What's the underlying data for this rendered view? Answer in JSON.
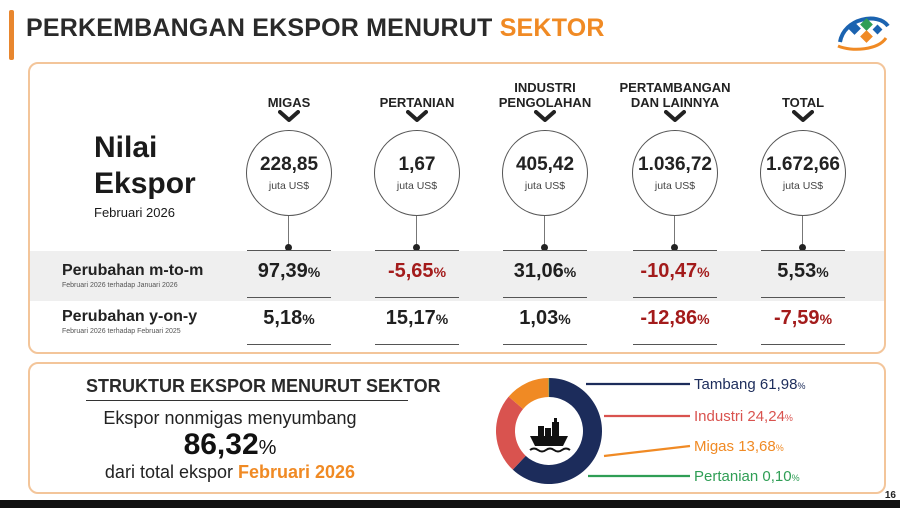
{
  "header": {
    "title_main": "PERKEMBANGAN EKSPOR MENURUT ",
    "title_highlight": "SEKTOR"
  },
  "colors": {
    "accent": "#f08a24",
    "negative": "#a31b1b",
    "navy": "#1c2c5b",
    "red": "#d9534f",
    "green": "#2f9e55"
  },
  "logo_icon": "bps-logo",
  "nilai": {
    "line1": "Nilai",
    "line2": "Ekspor",
    "period": "Februari 2026"
  },
  "rows": {
    "mtm_label": "Perubahan m-to-m",
    "mtm_note": "Februari 2026 terhadap Januari 2026",
    "yoy_label": "Perubahan y-on-y",
    "yoy_note": "Februari 2026 terhadap Februari 2025"
  },
  "sectors": [
    {
      "name": "MIGAS",
      "value": "228,85",
      "unit": "juta US$",
      "mtm": "97,39",
      "yoy": "5,18"
    },
    {
      "name": "PERTANIAN",
      "value": "1,67",
      "unit": "juta US$",
      "mtm": "-5,65",
      "yoy": "15,17"
    },
    {
      "name": "INDUSTRI\nPENGOLAHAN",
      "value": "405,42",
      "unit": "juta US$",
      "mtm": "31,06",
      "yoy": "1,03"
    },
    {
      "name": "PERTAMBANGAN\nDAN LAINNYA",
      "value": "1.036,72",
      "unit": "juta US$",
      "mtm": "-10,47",
      "yoy": "-12,86"
    },
    {
      "name": "TOTAL",
      "value": "1.672,66",
      "unit": "juta US$",
      "mtm": "5,53",
      "yoy": "-7,59"
    }
  ],
  "pct_sign": "%",
  "structure": {
    "title": "STRUKTUR EKSPOR MENURUT SEKTOR",
    "line1": "Ekspor nonmigas menyumbang",
    "big_value": "86,32",
    "big_unit": "%",
    "line3_prefix": "dari total ekspor ",
    "line3_highlight": "Februari 2026",
    "center_icon": "cargo-ship-icon"
  },
  "donut": [
    {
      "name": "Tambang",
      "value": 61.98,
      "label": "61,98",
      "color": "#1c2c5b"
    },
    {
      "name": "Industri",
      "value": 24.24,
      "label": "24,24",
      "color": "#d9534f"
    },
    {
      "name": "Migas",
      "value": 13.68,
      "label": "13,68",
      "color": "#f08a24"
    },
    {
      "name": "Pertanian",
      "value": 0.1,
      "label": "0,10",
      "color": "#2f9e55"
    }
  ],
  "page_number": "16"
}
